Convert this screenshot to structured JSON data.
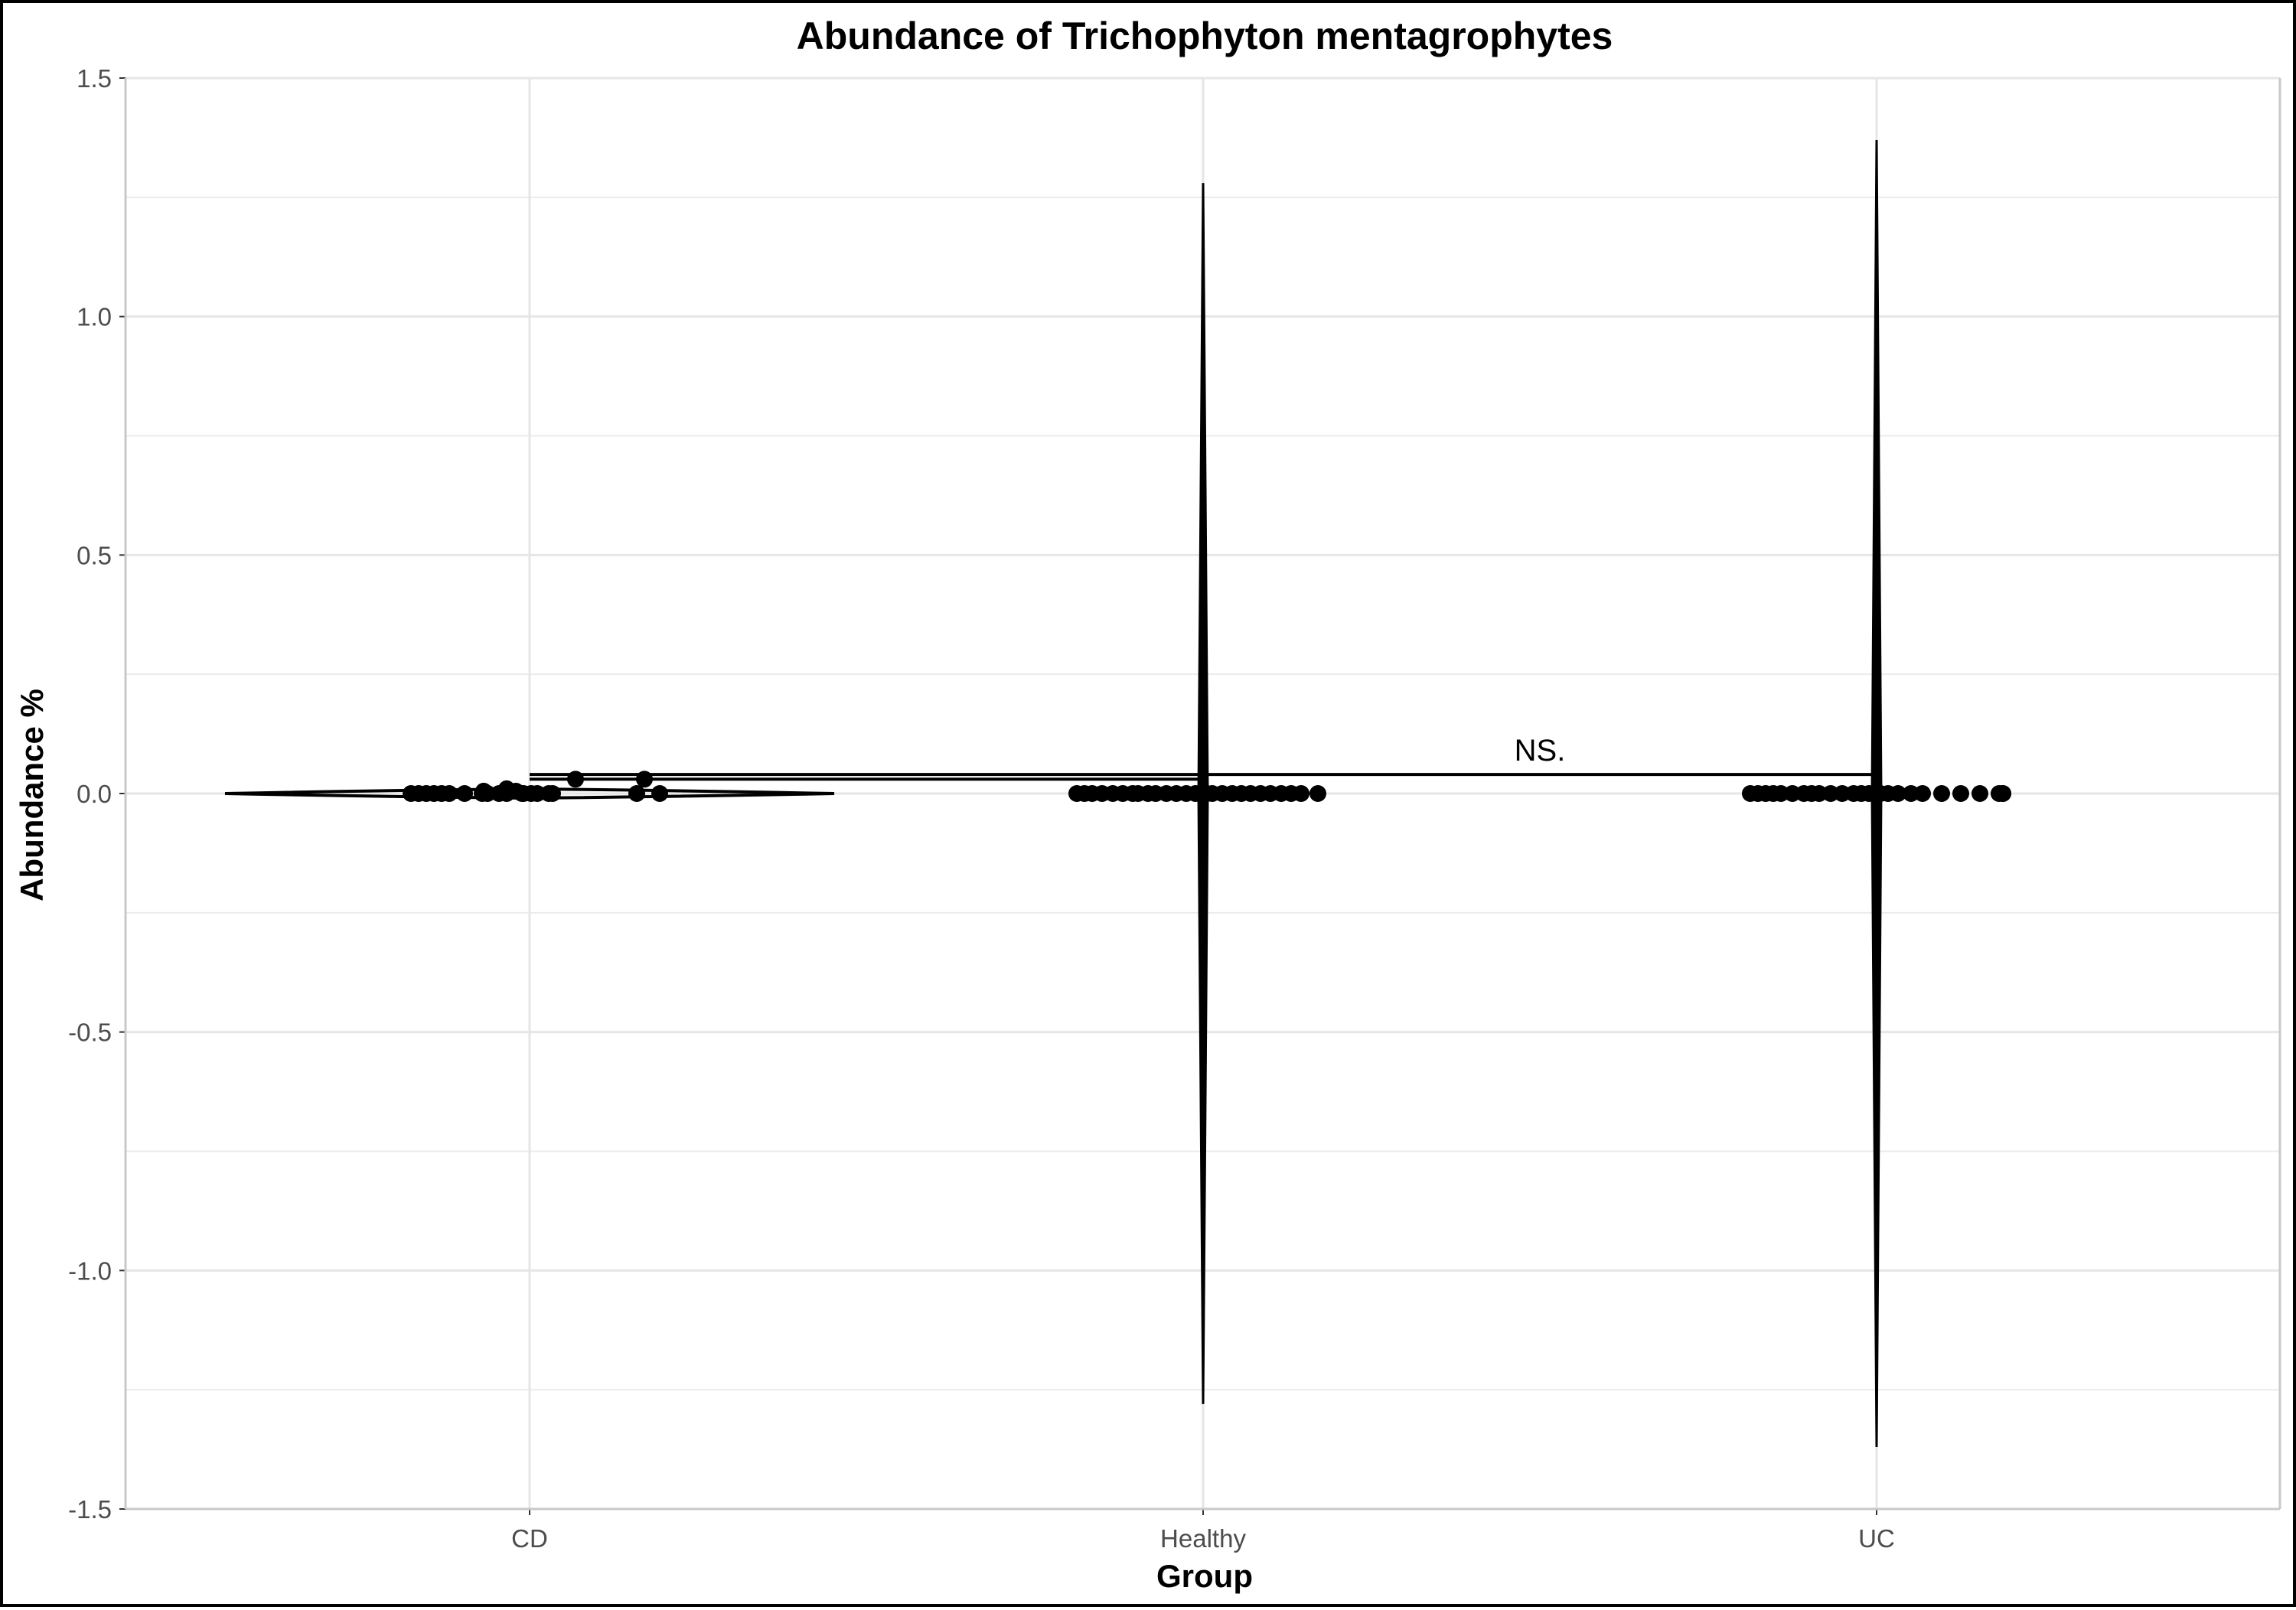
{
  "chart_data": {
    "type": "violin",
    "title": "Abundance of Trichophyton mentagrophytes",
    "xlabel": "Group",
    "ylabel": "Abundance %",
    "categories": [
      "CD",
      "Healthy",
      "UC"
    ],
    "ylim": [
      -1.5,
      1.5
    ],
    "yticks": [
      1.5,
      1.0,
      0.5,
      0.0,
      -0.5,
      -1.0,
      -1.5
    ],
    "ytick_labels": [
      "1.5",
      "1.0",
      "0.5",
      "0.0",
      "-0.5",
      "-1.0",
      "-1.5"
    ],
    "grid": true,
    "violin_extent": {
      "CD": [
        -0.01,
        0.01
      ],
      "Healthy": [
        -1.28,
        1.28
      ],
      "UC": [
        -1.37,
        1.37
      ]
    },
    "points": {
      "CD": [
        0,
        0,
        0,
        0,
        0,
        0,
        0,
        0,
        0,
        0.005,
        0,
        0,
        0.005,
        0,
        0.01,
        0.03,
        0,
        0,
        0,
        0,
        0,
        0.03,
        0,
        0
      ],
      "Healthy": [
        0,
        0,
        0,
        0,
        0,
        0,
        0,
        0,
        0,
        0,
        0,
        0,
        0,
        0,
        0,
        0,
        0,
        0,
        0,
        0,
        0,
        0,
        0,
        0,
        0,
        0
      ],
      "UC": [
        0,
        0,
        0,
        0,
        0,
        0,
        0,
        0,
        0,
        0,
        0,
        0,
        0,
        0,
        0,
        0,
        0,
        0,
        0,
        0,
        0,
        0,
        0,
        0,
        0,
        0
      ]
    },
    "comparisons": [
      {
        "groups": [
          "CD",
          "Healthy"
        ],
        "y": 0.03,
        "label": ""
      },
      {
        "groups": [
          "CD",
          "UC"
        ],
        "y": 0.04,
        "label": "NS."
      }
    ]
  }
}
